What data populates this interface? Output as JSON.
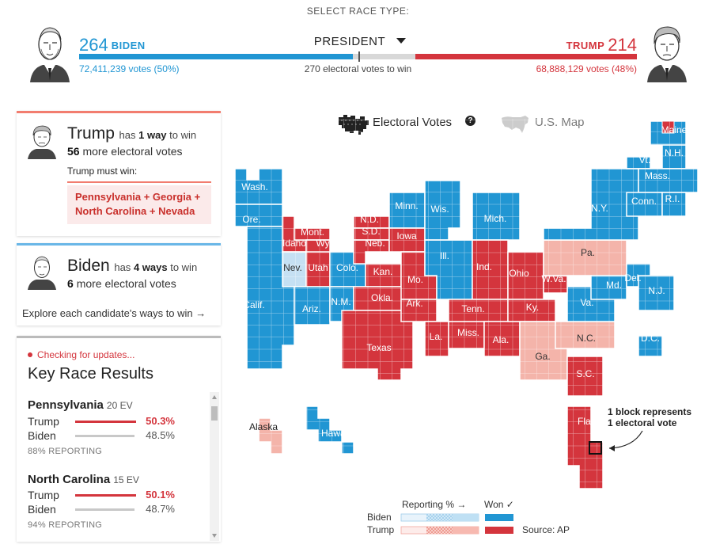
{
  "header": {
    "select_label": "SELECT RACE TYPE:",
    "race_type": "PRESIDENT",
    "to_win": "270 electoral votes to win",
    "biden": {
      "ev": "264",
      "name": "BIDEN",
      "votes": "72,411,239 votes (50%)",
      "color": "#2196d3"
    },
    "trump": {
      "ev": "214",
      "name": "TRUMP",
      "votes": "68,888,129 votes (48%)",
      "color": "#d4353d"
    },
    "ev_bar": {
      "biden": 264,
      "trump": 214,
      "total": 538,
      "threshold": 270
    }
  },
  "paths": {
    "trump": {
      "name": "Trump",
      "has": "has",
      "ways": "1 way",
      "to_win": "to win",
      "more_num": "56",
      "more_label": "more electoral votes",
      "must_win_label": "Trump must win:",
      "must_win_line1": "Pennsylvania + Georgia +",
      "must_win_line2": "North Carolina + Nevada"
    },
    "biden": {
      "name": "Biden",
      "has": "has",
      "ways": "4 ways",
      "to_win": "to win",
      "more_num": "6",
      "more_label": "more electoral votes",
      "explore": "Explore each candidate's ways to win →"
    }
  },
  "results": {
    "checking": "Checking for updates...",
    "title": "Key Race Results",
    "races": [
      {
        "state": "Pennsylvania",
        "ev": "20 EV",
        "trump_label": "Trump",
        "trump_pct": "50.3%",
        "trump_value": 50.3,
        "biden_label": "Biden",
        "biden_pct": "48.5%",
        "biden_value": 48.5,
        "reporting": "88% REPORTING"
      },
      {
        "state": "North Carolina",
        "ev": "15 EV",
        "trump_label": "Trump",
        "trump_pct": "50.1%",
        "trump_value": 50.1,
        "biden_label": "Biden",
        "biden_pct": "48.7%",
        "biden_value": 48.7,
        "reporting": "94% REPORTING"
      }
    ]
  },
  "map": {
    "toggle_ev": "Electoral Votes",
    "toggle_ev_icon": "cartogram-icon",
    "toggle_help": "?",
    "toggle_us": "U.S. Map",
    "toggle_us_icon": "us-map-icon",
    "footnote_line1": "1 block represents",
    "footnote_line2": "1 electoral vote",
    "colors": {
      "biden_won": "#2196d3",
      "trump_won": "#d4353d",
      "trump_leading": "#f4b4aa",
      "biden_leading": "#c5e0f3"
    },
    "states": [
      "Wash.",
      "Ore.",
      "Calif.",
      "Idaho",
      "Nev.",
      "Mont.",
      "Wyo.",
      "Utah",
      "Ariz.",
      "Colo.",
      "N.M.",
      "N.D.",
      "S.D.",
      "Neb.",
      "Kan.",
      "Okla.",
      "Texas",
      "Minn.",
      "Iowa",
      "Mo.",
      "Ark.",
      "La.",
      "Wis.",
      "Ill.",
      "Miss.",
      "Mich.",
      "Ind.",
      "Tenn.",
      "Ala.",
      "Ohio",
      "Ky.",
      "Ga.",
      "Fla.",
      "S.C.",
      "N.C.",
      "Va.",
      "W.Va.",
      "Pa.",
      "N.Y.",
      "Md.",
      "Del.",
      "N.J.",
      "Vt.",
      "N.H.",
      "Maine",
      "Mass.",
      "Conn.",
      "R.I.",
      "D.C.",
      "Alaska",
      "Hawaii"
    ]
  },
  "legend": {
    "reporting": "Reporting % →",
    "won": "Won ✓",
    "biden": "Biden",
    "trump": "Trump",
    "source": "Source: AP"
  }
}
